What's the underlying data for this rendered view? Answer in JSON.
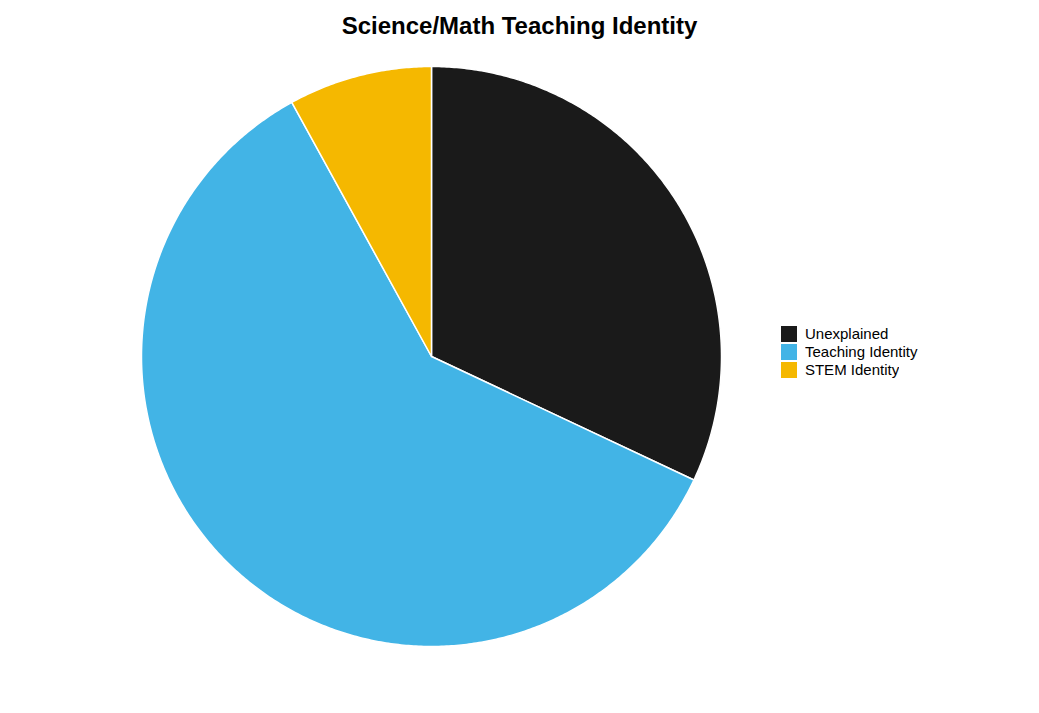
{
  "chart_data": {
    "type": "pie",
    "title": "Science/Math Teaching Identity",
    "categories": [
      "Unexplained",
      "Teaching Identity",
      "STEM Identity"
    ],
    "values": [
      32,
      60,
      8
    ],
    "colors": [
      "#1a1a1a",
      "#42B4E6",
      "#F5B800"
    ],
    "legend": "right"
  }
}
